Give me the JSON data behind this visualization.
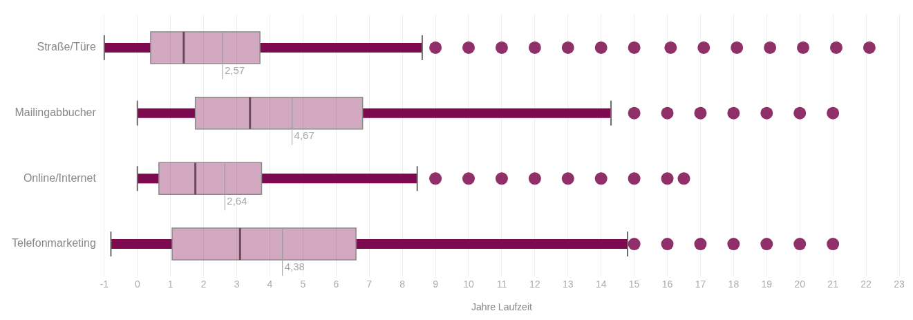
{
  "chart_data": {
    "type": "box",
    "orientation": "horizontal",
    "xlabel": "Jahre Laufzeit",
    "categories": [
      "Straße/Türe",
      "Mailingabbucher",
      "Online/Internet",
      "Telefonmarketing"
    ],
    "series": [
      {
        "color": "#7d0a4e",
        "boxes": [
          {
            "low": -1,
            "q1": 0.4,
            "median": 1.4,
            "q3": 3.7,
            "high": 8.6,
            "mean": 2.57,
            "outliers": [
              9,
              10,
              11,
              12,
              13,
              14,
              15,
              16.1,
              17.1,
              18.1,
              19.1,
              20.1,
              21.1,
              22.1
            ]
          },
          {
            "low": 0,
            "q1": 1.75,
            "median": 3.4,
            "q3": 6.8,
            "high": 14.3,
            "mean": 4.67,
            "outliers": [
              15,
              16,
              17,
              18,
              19,
              20,
              21
            ]
          },
          {
            "low": 0,
            "q1": 0.65,
            "median": 1.75,
            "q3": 3.75,
            "high": 8.45,
            "mean": 2.64,
            "outliers": [
              9,
              10,
              11,
              12,
              13,
              14,
              15,
              16,
              16.5
            ]
          },
          {
            "low": -0.8,
            "q1": 1.05,
            "median": 3.1,
            "q3": 6.6,
            "high": 14.8,
            "mean": 4.38,
            "outliers": [
              15,
              16,
              17,
              18,
              19,
              20,
              21
            ]
          }
        ]
      }
    ],
    "annotations": [
      "2,57",
      "4,67",
      "2,64",
      "4,38"
    ],
    "xlim": [
      -1,
      23
    ],
    "xticks": [
      -1,
      0,
      1,
      2,
      3,
      4,
      5,
      6,
      7,
      8,
      9,
      10,
      11,
      12,
      13,
      14,
      15,
      16,
      17,
      18,
      19,
      20,
      21,
      22,
      23
    ],
    "grid": "x",
    "legend": false,
    "marker": "circle"
  }
}
